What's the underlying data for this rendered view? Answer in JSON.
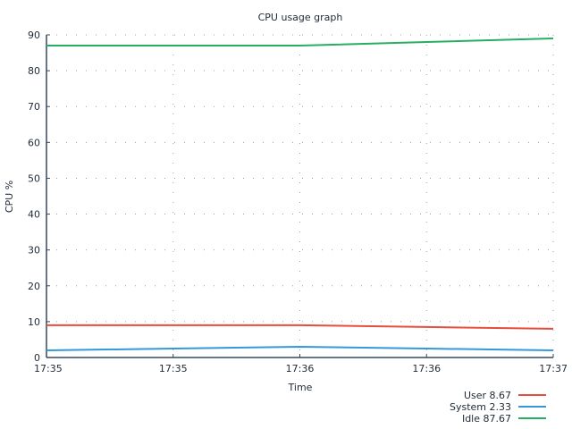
{
  "chart_data": {
    "type": "line",
    "title": "CPU usage graph",
    "xlabel": "Time",
    "ylabel": "CPU %",
    "ylim": [
      0,
      90
    ],
    "yticks": [
      0,
      10,
      20,
      30,
      40,
      50,
      60,
      70,
      80,
      90
    ],
    "x": [
      0,
      1,
      2,
      3,
      4
    ],
    "xtick_labels": [
      "17:35",
      "17:35",
      "17:36",
      "17:36",
      "17:37"
    ],
    "grid": true,
    "legend_position": "bottom-right",
    "series": [
      {
        "name": "User",
        "legend": "User 8.67",
        "color": "#e74c3c",
        "values": [
          9,
          9,
          9,
          8.5,
          8
        ]
      },
      {
        "name": "System",
        "legend": "System 2.33",
        "color": "#3498db",
        "values": [
          2,
          2.5,
          3,
          2.5,
          2
        ]
      },
      {
        "name": "Idle",
        "legend": "Idle 87.67",
        "color": "#27ae60",
        "values": [
          87,
          87,
          87,
          88,
          89
        ]
      }
    ]
  }
}
